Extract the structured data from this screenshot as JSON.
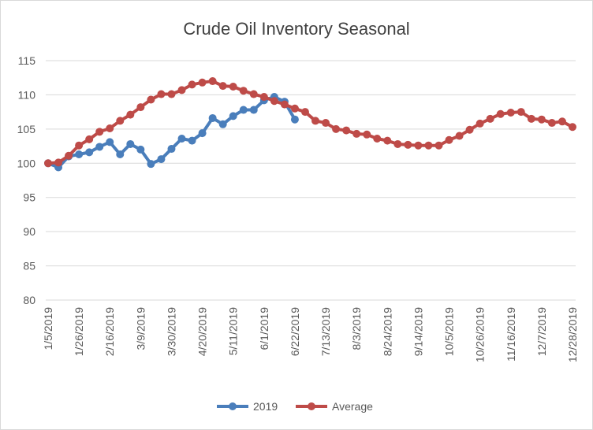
{
  "chart_data": {
    "type": "line",
    "title": "Crude Oil Inventory Seasonal",
    "categories": [
      "1/5/2019",
      null,
      null,
      "1/26/2019",
      null,
      null,
      "2/16/2019",
      null,
      null,
      "3/9/2019",
      null,
      null,
      "3/30/2019",
      null,
      null,
      "4/20/2019",
      null,
      null,
      "5/11/2019",
      null,
      null,
      "6/1/2019",
      null,
      null,
      "6/22/2019",
      null,
      null,
      "7/13/2019",
      null,
      null,
      "8/3/2019",
      null,
      null,
      "8/24/2019",
      null,
      null,
      "9/14/2019",
      null,
      null,
      "10/5/2019",
      null,
      null,
      "10/26/2019",
      null,
      null,
      "11/16/2019",
      null,
      null,
      "12/7/2019",
      null,
      null,
      "12/28/2019"
    ],
    "series": [
      {
        "name": "2019",
        "color": "#4a7ebb",
        "values": [
          100,
          99.4,
          101,
          101.3,
          101.6,
          102.4,
          103.1,
          101.3,
          102.8,
          102,
          99.9,
          100.6,
          102.1,
          103.6,
          103.3,
          104.4,
          106.6,
          105.7,
          106.9,
          107.8,
          107.8,
          109.2,
          109.7,
          109,
          106.4,
          null,
          null,
          null,
          null,
          null,
          null,
          null,
          null,
          null,
          null,
          null,
          null,
          null,
          null,
          null,
          null,
          null,
          null,
          null,
          null,
          null,
          null,
          null,
          null,
          null,
          null,
          null
        ]
      },
      {
        "name": "Average",
        "color": "#be4b48",
        "values": [
          100,
          100.1,
          101.1,
          102.6,
          103.5,
          104.6,
          105.1,
          106.2,
          107.1,
          108.2,
          109.3,
          110.1,
          110.1,
          110.7,
          111.5,
          111.8,
          112,
          111.3,
          111.2,
          110.6,
          110.1,
          109.7,
          109.1,
          108.6,
          108,
          107.5,
          106.2,
          105.9,
          105,
          104.8,
          104.3,
          104.2,
          103.6,
          103.3,
          102.8,
          102.7,
          102.6,
          102.6,
          102.6,
          103.4,
          104,
          104.9,
          105.8,
          106.5,
          107.2,
          107.4,
          107.5,
          106.5,
          106.4,
          105.9,
          106.1,
          105.3
        ]
      }
    ],
    "ylim": [
      80,
      115
    ],
    "yticks": [
      80,
      85,
      90,
      95,
      100,
      105,
      110,
      115
    ],
    "grid": true,
    "legend": "bottom"
  }
}
